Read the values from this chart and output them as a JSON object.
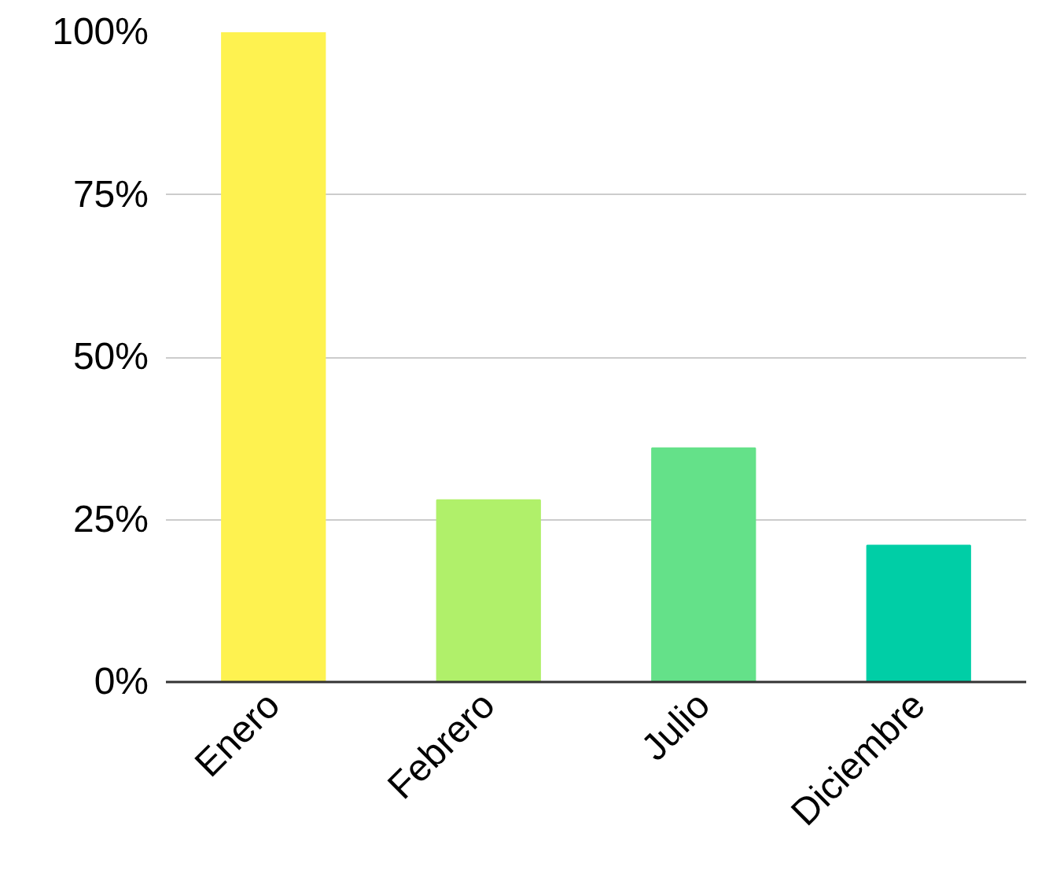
{
  "chart_data": {
    "type": "bar",
    "categories": [
      "Enero",
      "Febrero",
      "Julio",
      "Diciembre"
    ],
    "values": [
      100,
      28,
      36,
      21
    ],
    "colors": [
      "#fef250",
      "#b0f06a",
      "#64e189",
      "#00cea6"
    ],
    "ylim": [
      0,
      100
    ],
    "yticks": [
      {
        "value": 0,
        "label": "0%"
      },
      {
        "value": 25,
        "label": "25%"
      },
      {
        "value": 50,
        "label": "50%"
      },
      {
        "value": 75,
        "label": "75%"
      },
      {
        "value": 100,
        "label": "100%"
      }
    ],
    "grid": "y"
  }
}
